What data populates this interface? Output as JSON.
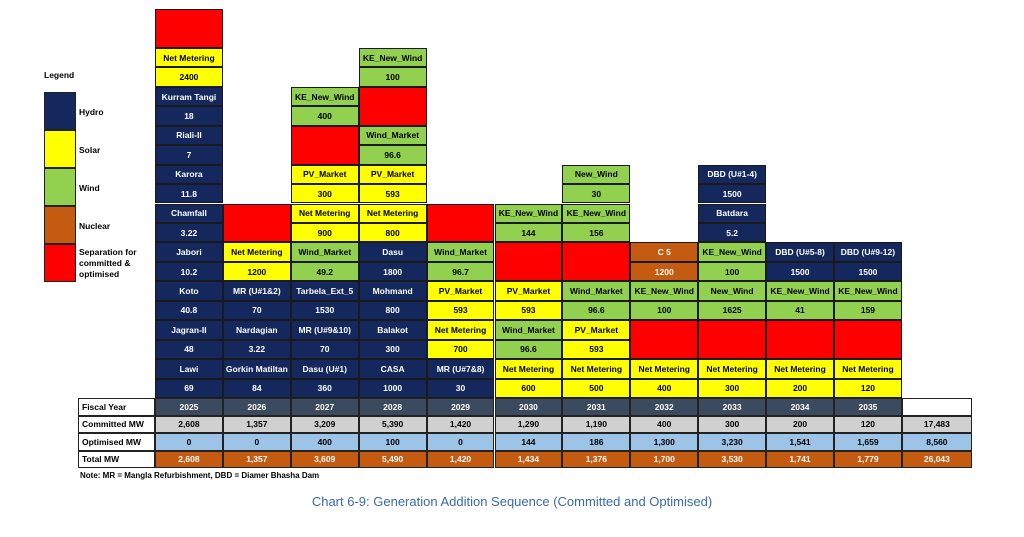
{
  "legend": {
    "title": "Legend",
    "items": [
      {
        "key": "hydro",
        "label": "Hydro"
      },
      {
        "key": "solar",
        "label": "Solar"
      },
      {
        "key": "wind",
        "label": "Wind"
      },
      {
        "key": "nuclear",
        "label": "Nuclear"
      },
      {
        "key": "sep",
        "label": "Separation for committed & optimised"
      }
    ]
  },
  "colors": {
    "hydro": "#14285e",
    "solar": "#ffff00",
    "wind": "#92d050",
    "nuclear": "#c55a11",
    "sep": "#ff0000",
    "fiscal_year_row": "#3b4a5e",
    "committed_row": "#d0d0d0",
    "optimised_row": "#9dc3e6",
    "total_row": "#c55a11"
  },
  "chart_data": {
    "type": "table",
    "title": "Chart 6-9: Generation Addition Sequence (Committed and Optimised)",
    "columns": [
      {
        "year": "2025",
        "stack": [
          {
            "name": "Lawi",
            "mw": "69",
            "type": "hydro"
          },
          {
            "name": "Jagran-II",
            "mw": "48",
            "type": "hydro"
          },
          {
            "name": "Koto",
            "mw": "40.8",
            "type": "hydro"
          },
          {
            "name": "Jabori",
            "mw": "10.2",
            "type": "hydro"
          },
          {
            "name": "Chamfall",
            "mw": "3.22",
            "type": "hydro"
          },
          {
            "name": "Karora",
            "mw": "11.8",
            "type": "hydro"
          },
          {
            "name": "Riali-II",
            "mw": "7",
            "type": "hydro"
          },
          {
            "name": "Kurram Tangi",
            "mw": "18",
            "type": "hydro"
          },
          {
            "name": "Net Metering",
            "mw": "2400",
            "type": "solar"
          },
          {
            "type": "sep"
          }
        ]
      },
      {
        "year": "2026",
        "stack": [
          {
            "name": "Gorkin Matiltan",
            "mw": "84",
            "type": "hydro"
          },
          {
            "name": "Nardagian",
            "mw": "3.22",
            "type": "hydro"
          },
          {
            "name": "MR (U#1&2)",
            "mw": "70",
            "type": "hydro"
          },
          {
            "name": "Net Metering",
            "mw": "1200",
            "type": "solar"
          },
          {
            "type": "sep"
          }
        ]
      },
      {
        "year": "2027",
        "stack": [
          {
            "name": "Dasu (U#1)",
            "mw": "360",
            "type": "hydro"
          },
          {
            "name": "MR (U#9&10)",
            "mw": "70",
            "type": "hydro"
          },
          {
            "name": "Tarbela_Ext_5",
            "mw": "1530",
            "type": "hydro"
          },
          {
            "name": "Wind_Market",
            "mw": "49.2",
            "type": "wind"
          },
          {
            "name": "Net Metering",
            "mw": "900",
            "type": "solar"
          },
          {
            "name": "PV_Market",
            "mw": "300",
            "type": "solar"
          },
          {
            "type": "sep"
          },
          {
            "name": "KE_New_Wind",
            "mw": "400",
            "type": "wind"
          }
        ]
      },
      {
        "year": "2028",
        "stack": [
          {
            "name": "CASA",
            "mw": "1000",
            "type": "hydro"
          },
          {
            "name": "Balakot",
            "mw": "300",
            "type": "hydro"
          },
          {
            "name": "Mohmand",
            "mw": "800",
            "type": "hydro"
          },
          {
            "name": "Dasu",
            "mw": "1800",
            "type": "hydro"
          },
          {
            "name": "Net Metering",
            "mw": "800",
            "type": "solar"
          },
          {
            "name": "PV_Market",
            "mw": "593",
            "type": "solar"
          },
          {
            "name": "Wind_Market",
            "mw": "96.6",
            "type": "wind"
          },
          {
            "type": "sep"
          },
          {
            "name": "KE_New_Wind",
            "mw": "100",
            "type": "wind"
          }
        ]
      },
      {
        "year": "2029",
        "stack": [
          {
            "name": "MR (U#7&8)",
            "mw": "30",
            "type": "hydro"
          },
          {
            "name": "Net Metering",
            "mw": "700",
            "type": "solar"
          },
          {
            "name": "PV_Market",
            "mw": "593",
            "type": "solar"
          },
          {
            "name": "Wind_Market",
            "mw": "96.7",
            "type": "wind"
          },
          {
            "type": "sep"
          }
        ]
      },
      {
        "year": "2030",
        "stack": [
          {
            "name": "Net Metering",
            "mw": "600",
            "type": "solar"
          },
          {
            "name": "Wind_Market",
            "mw": "96.6",
            "type": "wind"
          },
          {
            "name": "PV_Market",
            "mw": "593",
            "type": "solar"
          },
          {
            "type": "sep"
          },
          {
            "name": "KE_New_Wind",
            "mw": "144",
            "type": "wind"
          }
        ]
      },
      {
        "year": "2031",
        "stack": [
          {
            "name": "Net Metering",
            "mw": "500",
            "type": "solar"
          },
          {
            "name": "PV_Market",
            "mw": "593",
            "type": "solar"
          },
          {
            "name": "Wind_Market",
            "mw": "96.6",
            "type": "wind"
          },
          {
            "type": "sep"
          },
          {
            "name": "KE_New_Wind",
            "mw": "156",
            "type": "wind"
          },
          {
            "name": "New_Wind",
            "mw": "30",
            "type": "wind"
          }
        ]
      },
      {
        "year": "2032",
        "stack": [
          {
            "name": "Net Metering",
            "mw": "400",
            "type": "solar"
          },
          {
            "type": "sep"
          },
          {
            "name": "KE_New_Wind",
            "mw": "100",
            "type": "wind"
          },
          {
            "name": "C 5",
            "mw": "1200",
            "type": "nuclear"
          }
        ]
      },
      {
        "year": "2033",
        "stack": [
          {
            "name": "Net Metering",
            "mw": "300",
            "type": "solar"
          },
          {
            "type": "sep"
          },
          {
            "name": "New_Wind",
            "mw": "1625",
            "type": "wind"
          },
          {
            "name": "KE_New_Wind",
            "mw": "100",
            "type": "wind"
          },
          {
            "name": "Batdara",
            "mw": "5.2",
            "type": "hydro"
          },
          {
            "name": "DBD (U#1-4)",
            "mw": "1500",
            "type": "hydro"
          }
        ]
      },
      {
        "year": "2034",
        "stack": [
          {
            "name": "Net Metering",
            "mw": "200",
            "type": "solar"
          },
          {
            "type": "sep"
          },
          {
            "name": "KE_New_Wind",
            "mw": "41",
            "type": "wind"
          },
          {
            "name": "DBD (U#5-8)",
            "mw": "1500",
            "type": "hydro"
          }
        ]
      },
      {
        "year": "2035",
        "stack": [
          {
            "name": "Net Metering",
            "mw": "120",
            "type": "solar"
          },
          {
            "type": "sep"
          },
          {
            "name": "KE_New_Wind",
            "mw": "159",
            "type": "wind"
          },
          {
            "name": "DBD (U#9-12)",
            "mw": "1500",
            "type": "hydro"
          }
        ]
      }
    ],
    "table_rows": [
      {
        "label": "Fiscal Year",
        "values": [
          "2025",
          "2026",
          "2027",
          "2028",
          "2029",
          "2030",
          "2031",
          "2032",
          "2033",
          "2034",
          "2035"
        ],
        "total": ""
      },
      {
        "label": "Committed MW",
        "values": [
          "2,608",
          "1,357",
          "3,209",
          "5,390",
          "1,420",
          "1,290",
          "1,190",
          "400",
          "300",
          "200",
          "120"
        ],
        "total": "17,483"
      },
      {
        "label": "Optimised MW",
        "values": [
          "0",
          "0",
          "400",
          "100",
          "0",
          "144",
          "186",
          "1,300",
          "3,230",
          "1,541",
          "1,659"
        ],
        "total": "8,560"
      },
      {
        "label": "Total MW",
        "values": [
          "2,608",
          "1,357",
          "3,609",
          "5,490",
          "1,420",
          "1,434",
          "1,376",
          "1,700",
          "3,530",
          "1,741",
          "1,779"
        ],
        "total": "26,043"
      }
    ]
  },
  "note": "Note: MR = Mangla Refurbishment, DBD = Diamer Bhasha Dam",
  "caption": "Chart 6-9: Generation Addition Sequence (Committed and Optimised)"
}
